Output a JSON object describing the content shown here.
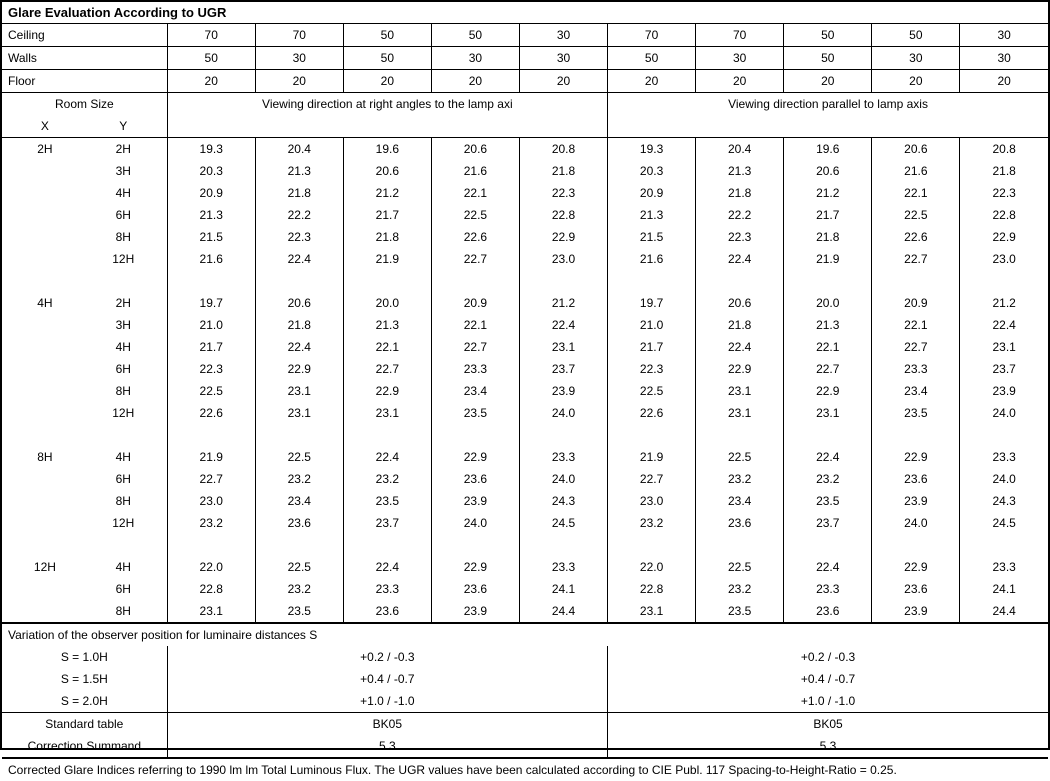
{
  "title": "Glare Evaluation According to UGR",
  "header_rows": [
    {
      "label": "Ceiling",
      "vals": [
        "70",
        "70",
        "50",
        "50",
        "30",
        "70",
        "70",
        "50",
        "50",
        "30"
      ]
    },
    {
      "label": "Walls",
      "vals": [
        "50",
        "30",
        "50",
        "30",
        "30",
        "50",
        "30",
        "50",
        "30",
        "30"
      ]
    },
    {
      "label": "Floor",
      "vals": [
        "20",
        "20",
        "20",
        "20",
        "20",
        "20",
        "20",
        "20",
        "20",
        "20"
      ]
    }
  ],
  "room_size_label": "Room Size",
  "x_label": "X",
  "y_label": "Y",
  "view_right": "Viewing direction at right angles to the lamp axi",
  "view_parallel": "Viewing direction parallel to lamp axis",
  "data_groups": [
    {
      "x": "2H",
      "rows": [
        {
          "y": "2H",
          "v": [
            "19.3",
            "20.4",
            "19.6",
            "20.6",
            "20.8",
            "19.3",
            "20.4",
            "19.6",
            "20.6",
            "20.8"
          ]
        },
        {
          "y": "3H",
          "v": [
            "20.3",
            "21.3",
            "20.6",
            "21.6",
            "21.8",
            "20.3",
            "21.3",
            "20.6",
            "21.6",
            "21.8"
          ]
        },
        {
          "y": "4H",
          "v": [
            "20.9",
            "21.8",
            "21.2",
            "22.1",
            "22.3",
            "20.9",
            "21.8",
            "21.2",
            "22.1",
            "22.3"
          ]
        },
        {
          "y": "6H",
          "v": [
            "21.3",
            "22.2",
            "21.7",
            "22.5",
            "22.8",
            "21.3",
            "22.2",
            "21.7",
            "22.5",
            "22.8"
          ]
        },
        {
          "y": "8H",
          "v": [
            "21.5",
            "22.3",
            "21.8",
            "22.6",
            "22.9",
            "21.5",
            "22.3",
            "21.8",
            "22.6",
            "22.9"
          ]
        },
        {
          "y": "12H",
          "v": [
            "21.6",
            "22.4",
            "21.9",
            "22.7",
            "23.0",
            "21.6",
            "22.4",
            "21.9",
            "22.7",
            "23.0"
          ]
        }
      ]
    },
    {
      "x": "4H",
      "rows": [
        {
          "y": "2H",
          "v": [
            "19.7",
            "20.6",
            "20.0",
            "20.9",
            "21.2",
            "19.7",
            "20.6",
            "20.0",
            "20.9",
            "21.2"
          ]
        },
        {
          "y": "3H",
          "v": [
            "21.0",
            "21.8",
            "21.3",
            "22.1",
            "22.4",
            "21.0",
            "21.8",
            "21.3",
            "22.1",
            "22.4"
          ]
        },
        {
          "y": "4H",
          "v": [
            "21.7",
            "22.4",
            "22.1",
            "22.7",
            "23.1",
            "21.7",
            "22.4",
            "22.1",
            "22.7",
            "23.1"
          ]
        },
        {
          "y": "6H",
          "v": [
            "22.3",
            "22.9",
            "22.7",
            "23.3",
            "23.7",
            "22.3",
            "22.9",
            "22.7",
            "23.3",
            "23.7"
          ]
        },
        {
          "y": "8H",
          "v": [
            "22.5",
            "23.1",
            "22.9",
            "23.4",
            "23.9",
            "22.5",
            "23.1",
            "22.9",
            "23.4",
            "23.9"
          ]
        },
        {
          "y": "12H",
          "v": [
            "22.6",
            "23.1",
            "23.1",
            "23.5",
            "24.0",
            "22.6",
            "23.1",
            "23.1",
            "23.5",
            "24.0"
          ]
        }
      ]
    },
    {
      "x": "8H",
      "rows": [
        {
          "y": "4H",
          "v": [
            "21.9",
            "22.5",
            "22.4",
            "22.9",
            "23.3",
            "21.9",
            "22.5",
            "22.4",
            "22.9",
            "23.3"
          ]
        },
        {
          "y": "6H",
          "v": [
            "22.7",
            "23.2",
            "23.2",
            "23.6",
            "24.0",
            "22.7",
            "23.2",
            "23.2",
            "23.6",
            "24.0"
          ]
        },
        {
          "y": "8H",
          "v": [
            "23.0",
            "23.4",
            "23.5",
            "23.9",
            "24.3",
            "23.0",
            "23.4",
            "23.5",
            "23.9",
            "24.3"
          ]
        },
        {
          "y": "12H",
          "v": [
            "23.2",
            "23.6",
            "23.7",
            "24.0",
            "24.5",
            "23.2",
            "23.6",
            "23.7",
            "24.0",
            "24.5"
          ]
        }
      ]
    },
    {
      "x": "12H",
      "rows": [
        {
          "y": "4H",
          "v": [
            "22.0",
            "22.5",
            "22.4",
            "22.9",
            "23.3",
            "22.0",
            "22.5",
            "22.4",
            "22.9",
            "23.3"
          ]
        },
        {
          "y": "6H",
          "v": [
            "22.8",
            "23.2",
            "23.3",
            "23.6",
            "24.1",
            "22.8",
            "23.2",
            "23.3",
            "23.6",
            "24.1"
          ]
        },
        {
          "y": "8H",
          "v": [
            "23.1",
            "23.5",
            "23.6",
            "23.9",
            "24.4",
            "23.1",
            "23.5",
            "23.6",
            "23.9",
            "24.4"
          ]
        }
      ]
    }
  ],
  "variation_label": "Variation of the observer position for luminaire distances S",
  "variation_rows": [
    {
      "s": "S = 1.0H",
      "a": "+0.2 / -0.3",
      "b": "+0.2 / -0.3"
    },
    {
      "s": "S = 1.5H",
      "a": "+0.4 / -0.7",
      "b": "+0.4 / -0.7"
    },
    {
      "s": "S = 2.0H",
      "a": "+1.0 / -1.0",
      "b": "+1.0 / -1.0"
    }
  ],
  "std_table_label": "Standard table",
  "std_table_a": "BK05",
  "std_table_b": "BK05",
  "corr_label": "Correction Summand",
  "corr_a": "5.3",
  "corr_b": "5.3",
  "footer": "Corrected Glare Indices referring to 1990 lm lm Total Luminous Flux. The UGR values have been calculated according to CIE Publ. 117    Spacing-to-Height-Ratio = 0.25."
}
